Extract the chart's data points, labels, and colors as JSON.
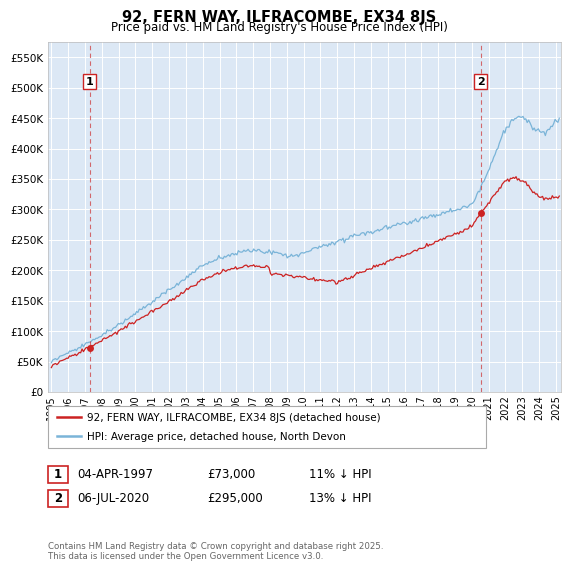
{
  "title": "92, FERN WAY, ILFRACOMBE, EX34 8JS",
  "subtitle": "Price paid vs. HM Land Registry's House Price Index (HPI)",
  "ylabel_ticks": [
    "£0",
    "£50K",
    "£100K",
    "£150K",
    "£200K",
    "£250K",
    "£300K",
    "£350K",
    "£400K",
    "£450K",
    "£500K",
    "£550K"
  ],
  "ytick_values": [
    0,
    50000,
    100000,
    150000,
    200000,
    250000,
    300000,
    350000,
    400000,
    450000,
    500000,
    550000
  ],
  "ylim": [
    0,
    575000
  ],
  "xlim_start": 1994.8,
  "xlim_end": 2025.3,
  "hpi_color": "#7ab4d8",
  "price_color": "#cc2222",
  "marker1_date": 1997.27,
  "marker1_value": 73000,
  "marker1_label": "1",
  "marker1_text": "04-APR-1997",
  "marker1_price": "£73,000",
  "marker1_hpi": "11% ↓ HPI",
  "marker2_date": 2020.52,
  "marker2_value": 295000,
  "marker2_label": "2",
  "marker2_text": "06-JUL-2020",
  "marker2_price": "£295,000",
  "marker2_hpi": "13% ↓ HPI",
  "legend_line1": "92, FERN WAY, ILFRACOMBE, EX34 8JS (detached house)",
  "legend_line2": "HPI: Average price, detached house, North Devon",
  "footer": "Contains HM Land Registry data © Crown copyright and database right 2025.\nThis data is licensed under the Open Government Licence v3.0.",
  "plot_bg_color": "#dce8f5",
  "grid_color": "#ffffff"
}
